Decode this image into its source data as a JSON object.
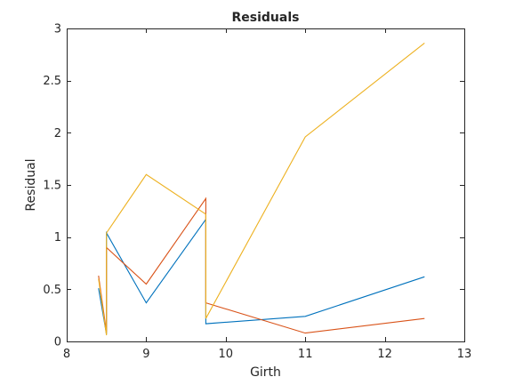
{
  "chart_data": {
    "type": "line",
    "title": "Residuals",
    "xlabel": "Girth",
    "ylabel": "Residual",
    "xlim": [
      8,
      13
    ],
    "ylim": [
      0,
      3
    ],
    "xticks": [
      "8",
      "9",
      "10",
      "11",
      "12",
      "13"
    ],
    "yticks": [
      "0",
      "0.5",
      "1",
      "1.5",
      "2",
      "2.5",
      "3"
    ],
    "grid": false,
    "series": [
      {
        "color": "#0072BD",
        "x": [
          8.4,
          8.5,
          8.5,
          9.0,
          9.75,
          9.75,
          11.0,
          12.5
        ],
        "y": [
          0.51,
          0.07,
          1.04,
          0.37,
          1.17,
          0.17,
          0.24,
          0.62
        ]
      },
      {
        "color": "#D95319",
        "x": [
          8.4,
          8.5,
          8.5,
          9.0,
          9.75,
          9.75,
          11.0,
          12.5
        ],
        "y": [
          0.63,
          0.09,
          0.9,
          0.55,
          1.37,
          0.37,
          0.08,
          0.22
        ]
      },
      {
        "color": "#EDB120",
        "x": [
          8.4,
          8.5,
          8.5,
          9.0,
          9.75,
          9.75,
          11.0,
          12.5
        ],
        "y": [
          0.6,
          0.06,
          1.04,
          1.6,
          1.22,
          0.22,
          1.96,
          2.86
        ]
      }
    ]
  }
}
